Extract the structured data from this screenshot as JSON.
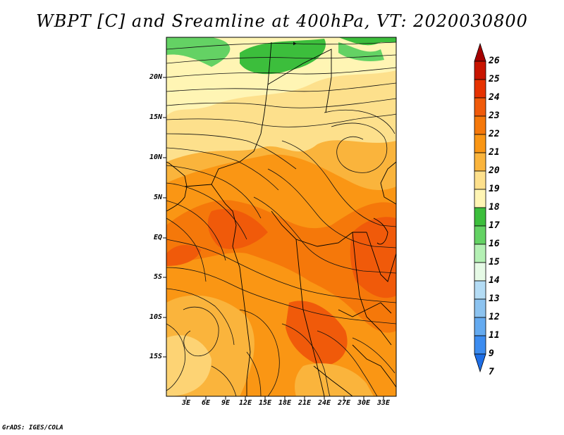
{
  "title": "WBPT [C] and Sreamline at 400hPa, VT: 2020030800",
  "credit": "GrADS: IGES/COLA",
  "lat_labels": [
    "20N",
    "15N",
    "10N",
    "5N",
    "EQ",
    "5S",
    "10S",
    "15S"
  ],
  "lon_labels": [
    "3E",
    "6E",
    "9E",
    "12E",
    "15E",
    "18E",
    "21E",
    "24E",
    "27E",
    "30E",
    "33E"
  ],
  "colorbar": {
    "labels": [
      "26",
      "25",
      "24",
      "23",
      "22",
      "21",
      "20",
      "19",
      "18",
      "17",
      "16",
      "15",
      "14",
      "13",
      "12",
      "11",
      "9",
      "7"
    ],
    "colors": [
      "#a50000",
      "#c81400",
      "#e63200",
      "#f05a0a",
      "#f5780a",
      "#fa9614",
      "#fab43c",
      "#fde08c",
      "#fff5b4",
      "#3cbe3c",
      "#64d264",
      "#b4f0b4",
      "#e6fae6",
      "#b4dcf5",
      "#8cc3f0",
      "#64aaf0",
      "#3c8cf0",
      "#1e6ee6"
    ]
  },
  "map": {
    "variable": "WBPT",
    "units": "C",
    "level": "400hPa",
    "valid_time": "2020030800",
    "lon_range": [
      0,
      35
    ],
    "lat_range": [
      -20,
      25
    ]
  }
}
